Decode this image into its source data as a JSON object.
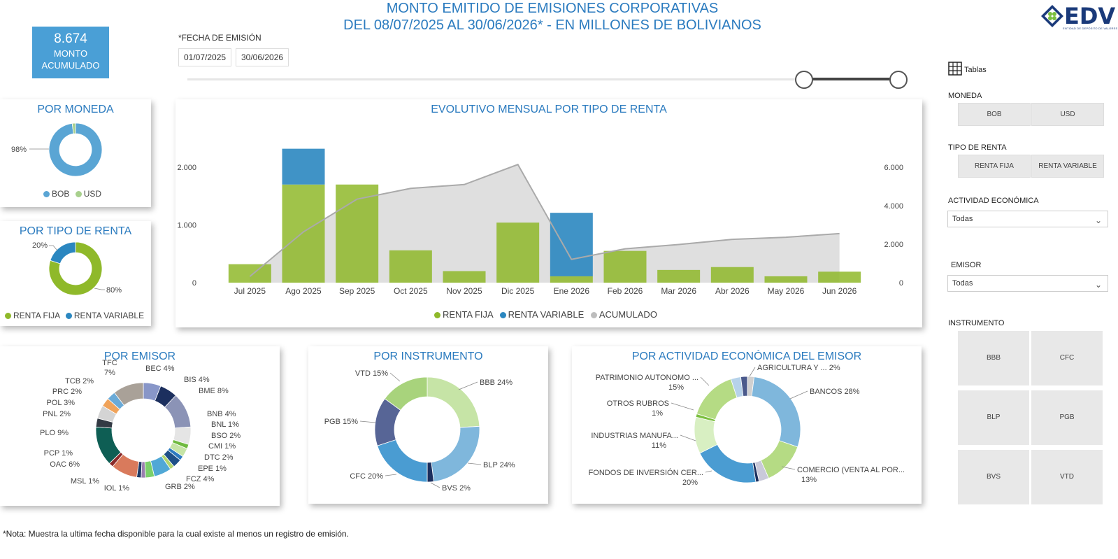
{
  "header": {
    "title_line1": "MONTO EMITIDO DE EMISIONES CORPORATIVAS",
    "title_line2": "DEL 08/07/2025 AL 30/06/2026* - EN MILLONES DE BOLIVIANOS",
    "logo": "EDV",
    "logo_sub": "ENTIDAD DE DEPÓSITO DE VALORES"
  },
  "kpi": {
    "value": "8.674",
    "label_line1": "MONTO",
    "label_line2": "ACUMULADO"
  },
  "date_filter": {
    "label": "*FECHA DE EMISIÓN",
    "start": "01/07/2025",
    "end": "30/06/2026",
    "range_fraction": [
      0.855,
      0.985
    ]
  },
  "sidebar": {
    "tables_label": "Tablas",
    "moneda": {
      "label": "MONEDA",
      "options": [
        "BOB",
        "USD"
      ]
    },
    "tipo_renta": {
      "label": "TIPO DE RENTA",
      "options": [
        "RENTA FIJA",
        "RENTA VARIABLE"
      ]
    },
    "actividad": {
      "label": "ACTIVIDAD ECONÓMICA",
      "value": "Todas"
    },
    "emisor": {
      "label": "EMISOR",
      "value": "Todas"
    },
    "instrumento": {
      "label": "INSTRUMENTO",
      "options": [
        "BBB",
        "CFC",
        "BLP",
        "PGB",
        "BVS",
        "VTD"
      ]
    }
  },
  "note": "*Nota: Muestra la ultima fecha disponible para la cual existe al menos un registro de emisión.",
  "colors": {
    "fija": "#8fb92a",
    "variable": "#2b87c0",
    "acumulado": "#bdbdbd",
    "title": "#2b7bbf"
  },
  "chart_data": [
    {
      "id": "moneda",
      "type": "pie",
      "title": "POR MONEDA",
      "slices": [
        {
          "name": "BOB",
          "value": 98,
          "label": "98%",
          "color": "#5aa5d4"
        },
        {
          "name": "USD",
          "value": 2,
          "label": "",
          "color": "#a8d08d"
        }
      ],
      "legend": [
        "BOB",
        "USD"
      ]
    },
    {
      "id": "tipo_renta",
      "type": "pie",
      "title": "POR TIPO DE RENTA",
      "slices": [
        {
          "name": "RENTA FIJA",
          "value": 80,
          "label": "80%",
          "color": "#8fb92a"
        },
        {
          "name": "RENTA VARIABLE",
          "value": 20,
          "label": "20%",
          "color": "#2b87c0"
        }
      ],
      "legend": [
        "RENTA FIJA",
        "RENTA VARIABLE"
      ]
    },
    {
      "id": "evolutivo",
      "type": "bar",
      "title": "EVOLUTIVO MENSUAL POR TIPO DE RENTA",
      "categories": [
        "Jul 2025",
        "Ago 2025",
        "Sep 2025",
        "Oct 2025",
        "Nov 2025",
        "Dic 2025",
        "Ene 2026",
        "Feb 2026",
        "Mar 2026",
        "Abr 2026",
        "May 2026",
        "Jun 2026"
      ],
      "series": [
        {
          "name": "RENTA FIJA",
          "values": [
            320,
            1700,
            1700,
            560,
            200,
            1040,
            110,
            550,
            220,
            270,
            110,
            190
          ]
        },
        {
          "name": "RENTA VARIABLE",
          "values": [
            0,
            620,
            0,
            0,
            0,
            0,
            1100,
            0,
            0,
            0,
            0,
            0
          ]
        },
        {
          "name": "ACUMULADO",
          "values": [
            320,
            2640,
            4340,
            4900,
            5100,
            6140,
            1210,
            1760,
            1980,
            2250,
            2360,
            2550
          ]
        }
      ],
      "y_ticks": [
        "0",
        "1.000",
        "2.000"
      ],
      "y2_ticks": [
        "0",
        "2.000",
        "4.000",
        "6.000"
      ],
      "ylim": [
        0,
        2400
      ],
      "y2lim": [
        0,
        7200
      ],
      "legend": [
        "RENTA FIJA",
        "RENTA VARIABLE",
        "ACUMULADO"
      ]
    },
    {
      "id": "emisor",
      "type": "pie",
      "title": "POR EMISOR",
      "slices": [
        {
          "name": "BEC",
          "value": 4,
          "label": "BEC 4%",
          "color": "#8896c8"
        },
        {
          "name": "BIS",
          "value": 4,
          "label": "BIS 4%",
          "color": "#1c2f5e"
        },
        {
          "name": "BME",
          "value": 8,
          "label": "BME 8%",
          "color": "#8b93b6"
        },
        {
          "name": "BNB",
          "value": 4,
          "label": "BNB 4%",
          "color": "#e5e5e5"
        },
        {
          "name": "BNL",
          "value": 1,
          "label": "BNL 1%",
          "color": "#6fba3f"
        },
        {
          "name": "BSO",
          "value": 2,
          "label": "BSO 2%",
          "color": "#c6e4a6"
        },
        {
          "name": "CMI",
          "value": 1,
          "label": "CMI 1%",
          "color": "#2c7ac0"
        },
        {
          "name": "DTC",
          "value": 2,
          "label": "DTC 2%",
          "color": "#1e4f87"
        },
        {
          "name": "EPE",
          "value": 1,
          "label": "EPE 1%",
          "color": "#b1d56f"
        },
        {
          "name": "FCZ",
          "value": 4,
          "label": "FCZ 4%",
          "color": "#50a8d6"
        },
        {
          "name": "GRB",
          "value": 2,
          "label": "GRB 2%",
          "color": "#7bd06b"
        },
        {
          "name": "IOL",
          "value": 1,
          "label": "IOL 1%",
          "color": "#9a7fb0"
        },
        {
          "name": "MSL",
          "value": 1,
          "label": "MSL 1%",
          "color": "#1f3a66"
        },
        {
          "name": "OAC",
          "value": 6,
          "label": "OAC 6%",
          "color": "#d97a5c"
        },
        {
          "name": "PCP",
          "value": 1,
          "label": "PCP 1%",
          "color": "#8b2a2a"
        },
        {
          "name": "PLO",
          "value": 9,
          "label": "PLO 9%",
          "color": "#0e5e54"
        },
        {
          "name": "PNL",
          "value": 2,
          "label": "PNL 2%",
          "color": "#333a44"
        },
        {
          "name": "POL",
          "value": 3,
          "label": "POL 3%",
          "color": "#d4d4d4"
        },
        {
          "name": "PRC",
          "value": 2,
          "label": "PRC 2%",
          "color": "#f0a35a"
        },
        {
          "name": "TCB",
          "value": 2,
          "label": "TCB 2%",
          "color": "#6aaad7"
        },
        {
          "name": "TFC",
          "value": 7,
          "label": "TFC 7%",
          "color": "#a9a198"
        }
      ]
    },
    {
      "id": "instrumento",
      "type": "pie",
      "title": "POR INSTRUMENTO",
      "slices": [
        {
          "name": "BBB",
          "value": 24,
          "label": "BBB 24%",
          "color": "#c6e4a6"
        },
        {
          "name": "BLP",
          "value": 24,
          "label": "BLP 24%",
          "color": "#7fb7dc"
        },
        {
          "name": "BVS",
          "value": 2,
          "label": "BVS 2%",
          "color": "#1c2f5e"
        },
        {
          "name": "CFC",
          "value": 20,
          "label": "CFC 20%",
          "color": "#4a9cd2"
        },
        {
          "name": "PGB",
          "value": 15,
          "label": "PGB 15%",
          "color": "#576596"
        },
        {
          "name": "VTD",
          "value": 15,
          "label": "VTD 15%",
          "color": "#a8d37c"
        }
      ]
    },
    {
      "id": "actividad",
      "type": "pie",
      "title": "POR ACTIVIDAD ECONÓMICA DEL EMISOR",
      "slices": [
        {
          "name": "AGRICULTURA Y ...",
          "value": 2,
          "label": "AGRICULTURA Y ... 2%",
          "color": "#d0d0d0"
        },
        {
          "name": "BANCOS",
          "value": 28,
          "label": "BANCOS 28%",
          "color": "#7fb7dc"
        },
        {
          "name": "COMERCIO (VENTA AL POR...",
          "value": 13,
          "label_line1": "COMERCIO (VENTA AL POR...",
          "label_line2": "13%",
          "color": "#b5db84"
        },
        {
          "name": "OTRAS",
          "value": 3,
          "label": "",
          "color": "#c9c9d9"
        },
        {
          "name": "OTRAS2",
          "value": 1,
          "label": "",
          "color": "#1c2f5e"
        },
        {
          "name": "FONDOS DE INVERSIÓN CER...",
          "value": 20,
          "label_line1": "FONDOS DE INVERSIÓN CER...",
          "label_line2": "20%",
          "color": "#4a9cd2"
        },
        {
          "name": "INDUSTRIAS MANUFA...",
          "value": 11,
          "label_line1": "INDUSTRIAS MANUFA...",
          "label_line2": "11%",
          "color": "#d8efc2"
        },
        {
          "name": "OTROS RUBROS",
          "value": 1,
          "label_line1": "OTROS RUBROS",
          "label_line2": "1%",
          "color": "#7bbf3f"
        },
        {
          "name": "PATRIMONIO AUTONOMO ...",
          "value": 15,
          "label_line1": "PATRIMONIO AUTONOMO ...",
          "label_line2": "15%",
          "color": "#b5db84"
        },
        {
          "name": "OTRAS3",
          "value": 3,
          "label": "",
          "color": "#b6d2ea"
        },
        {
          "name": "OTRAS4",
          "value": 2,
          "label": "",
          "color": "#4b5a8c"
        }
      ]
    }
  ]
}
